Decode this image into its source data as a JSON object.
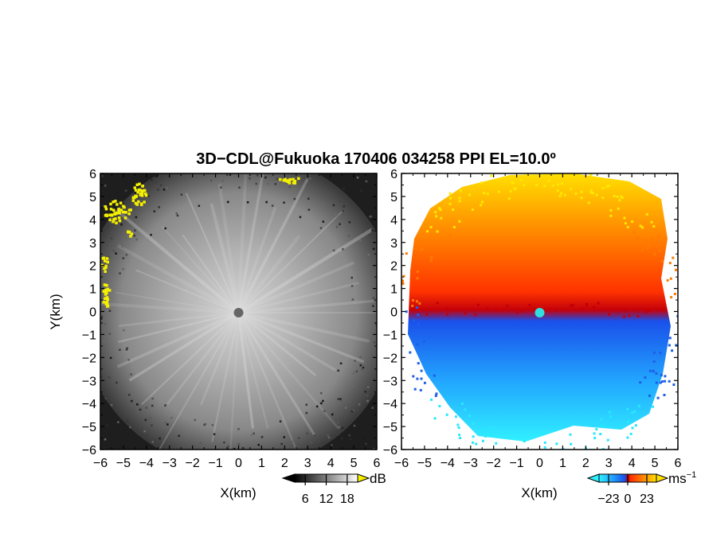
{
  "title": "3D−CDL@Fukuoka 170406 034258 PPI EL=10.0º",
  "chart_data": [
    {
      "type": "heatmap",
      "name": "reflectivity-ppi",
      "xlabel": "X(km)",
      "ylabel": "Y(km)",
      "xlim": [
        -6,
        6
      ],
      "ylim": [
        -6,
        6
      ],
      "xticks": [
        -6,
        -5,
        -4,
        -3,
        -2,
        -1,
        0,
        1,
        2,
        3,
        4,
        5,
        6
      ],
      "yticks": [
        -6,
        -5,
        -4,
        -3,
        -2,
        -1,
        0,
        1,
        2,
        3,
        4,
        5,
        6
      ],
      "xtick_labels": [
        "−6",
        "−5",
        "−4",
        "−3",
        "−2",
        "−1",
        "0",
        "1",
        "2",
        "3",
        "4",
        "5",
        "6"
      ],
      "ytick_labels": [
        "−6",
        "−5",
        "−4",
        "−3",
        "−2",
        "−1",
        "0",
        "1",
        "2",
        "3",
        "4",
        "5",
        "6"
      ],
      "colormap": "grayscale",
      "highlight_color": "#f5f000",
      "colorbar": {
        "unit": "dB",
        "ticks": [
          6,
          12,
          18
        ],
        "tick_labels": [
          "6",
          "12",
          "18"
        ]
      }
    },
    {
      "type": "heatmap",
      "name": "doppler-velocity-ppi",
      "xlabel": "X(km)",
      "xlim": [
        -6,
        6
      ],
      "ylim": [
        -6,
        6
      ],
      "xticks": [
        -6,
        -5,
        -4,
        -3,
        -2,
        -1,
        0,
        1,
        2,
        3,
        4,
        5,
        6
      ],
      "yticks": [
        -6,
        -5,
        -4,
        -3,
        -2,
        -1,
        0,
        1,
        2,
        3,
        4,
        5,
        6
      ],
      "xtick_labels": [
        "−6",
        "−5",
        "−4",
        "−3",
        "−2",
        "−1",
        "0",
        "1",
        "2",
        "3",
        "4",
        "5",
        "6"
      ],
      "ytick_labels": [
        "−6",
        "−5",
        "−4",
        "−3",
        "−2",
        "−1",
        "0",
        "1",
        "2",
        "3",
        "4",
        "5",
        "6"
      ],
      "colormap": "cyan-blue-red-yellow",
      "colors": {
        "negative": "#1e5fe8",
        "zero": "#c0000a",
        "positive": "#ff7a00",
        "max": "#ffe800",
        "min": "#28e8ff"
      },
      "colorbar": {
        "unit": "ms",
        "unit_exp": "−1",
        "ticks": [
          -23,
          0,
          23
        ],
        "tick_labels": [
          "−23",
          "0",
          "23"
        ]
      }
    }
  ]
}
